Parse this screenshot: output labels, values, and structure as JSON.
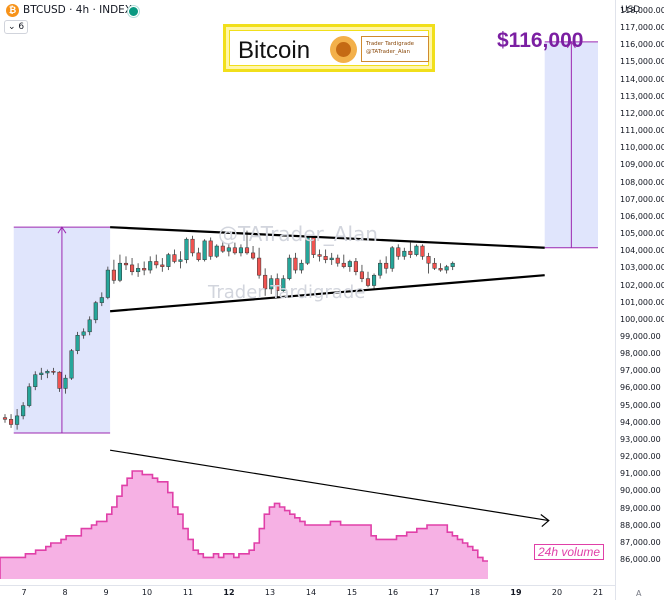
{
  "header": {
    "coin_glyph": "₿",
    "symbol_text": "BTCUSD · 4h · INDEX",
    "indicator_badge": "⌄ 6",
    "currency": "USD"
  },
  "banner": {
    "title": "Bitcoin",
    "card_line1": "Trader Tardigrade",
    "card_line2": "@TATrader_Alan"
  },
  "annotations": {
    "price_target": "$116,000",
    "watermark_handle": "@TATrader_Alan",
    "watermark_name": "Trader Tardigrade",
    "volume_label": "24h volume"
  },
  "colors": {
    "bull": "#26a69a",
    "bear": "#ef5350",
    "shade": "#d6dcfb",
    "shade_edge": "#9c27b0",
    "volume_fill": "#f5a3df",
    "volume_line": "#e040a8",
    "trend_line": "#000000"
  },
  "chart_data": {
    "type": "candlestick",
    "symbol": "BTCUSD",
    "interval": "4h",
    "yaxis": {
      "unit": "USD",
      "min": 86000,
      "max": 118000,
      "step": 1000
    },
    "y_tick_labels": [
      "118,000.00",
      "117,000.00",
      "116,000.00",
      "115,000.00",
      "114,000.00",
      "113,000.00",
      "112,000.00",
      "111,000.00",
      "110,000.00",
      "109,000.00",
      "108,000.00",
      "107,000.00",
      "106,000.00",
      "105,000.00",
      "104,000.00",
      "103,000.00",
      "102,000.00",
      "101,000.00",
      "100,000.00",
      "99,000.00",
      "98,000.00",
      "97,000.00",
      "96,000.00",
      "95,000.00",
      "94,000.00",
      "93,000.00",
      "92,000.00",
      "91,000.00",
      "90,000.00",
      "89,000.00",
      "88,000.00",
      "87,000.00",
      "86,000.00"
    ],
    "x_tick_labels": [
      {
        "label": "7",
        "day": 7,
        "bold": false
      },
      {
        "label": "8",
        "day": 8,
        "bold": false
      },
      {
        "label": "9",
        "day": 9,
        "bold": false
      },
      {
        "label": "10",
        "day": 10,
        "bold": false
      },
      {
        "label": "11",
        "day": 11,
        "bold": false
      },
      {
        "label": "12",
        "day": 12,
        "bold": true
      },
      {
        "label": "13",
        "day": 13,
        "bold": false
      },
      {
        "label": "14",
        "day": 14,
        "bold": false
      },
      {
        "label": "15",
        "day": 15,
        "bold": false
      },
      {
        "label": "16",
        "day": 16,
        "bold": false
      },
      {
        "label": "17",
        "day": 17,
        "bold": false
      },
      {
        "label": "18",
        "day": 18,
        "bold": false
      },
      {
        "label": "19",
        "day": 19,
        "bold": true
      },
      {
        "label": "20",
        "day": 20,
        "bold": false
      },
      {
        "label": "21",
        "day": 21,
        "bold": false
      }
    ],
    "candles": [
      [
        94300,
        94500,
        94000,
        94200
      ],
      [
        94200,
        94500,
        93700,
        93900
      ],
      [
        93900,
        94800,
        93600,
        94400
      ],
      [
        94400,
        95200,
        94200,
        95000
      ],
      [
        95000,
        96300,
        94900,
        96100
      ],
      [
        96100,
        97000,
        95900,
        96800
      ],
      [
        96800,
        97200,
        96500,
        96900
      ],
      [
        96900,
        97100,
        96600,
        97000
      ],
      [
        97000,
        97200,
        96800,
        96950
      ],
      [
        96950,
        97000,
        95800,
        96000
      ],
      [
        96000,
        96800,
        95700,
        96600
      ],
      [
        96600,
        98300,
        96500,
        98200
      ],
      [
        98200,
        99300,
        98000,
        99100
      ],
      [
        99100,
        99500,
        98900,
        99300
      ],
      [
        99300,
        100200,
        99100,
        100000
      ],
      [
        100000,
        101100,
        99800,
        101000
      ],
      [
        101000,
        101600,
        100800,
        101300
      ],
      [
        101300,
        103100,
        101200,
        102900
      ],
      [
        102900,
        103500,
        102100,
        102300
      ],
      [
        102300,
        103800,
        102200,
        103300
      ],
      [
        103300,
        103700,
        102900,
        103200
      ],
      [
        103200,
        103600,
        102600,
        102800
      ],
      [
        102800,
        103300,
        102500,
        103000
      ],
      [
        103000,
        103400,
        102600,
        102900
      ],
      [
        102900,
        103700,
        102700,
        103400
      ],
      [
        103400,
        103800,
        103000,
        103200
      ],
      [
        103200,
        103600,
        102800,
        103100
      ],
      [
        103100,
        103900,
        102900,
        103800
      ],
      [
        103800,
        104100,
        103300,
        103400
      ],
      [
        103400,
        104000,
        103000,
        103500
      ],
      [
        103500,
        104800,
        103300,
        104700
      ],
      [
        104700,
        104900,
        103700,
        103900
      ],
      [
        103900,
        104200,
        103400,
        103500
      ],
      [
        103500,
        104700,
        103400,
        104600
      ],
      [
        104600,
        104800,
        103500,
        103700
      ],
      [
        103700,
        104400,
        103600,
        104300
      ],
      [
        104300,
        104600,
        103900,
        104000
      ],
      [
        104000,
        104400,
        103700,
        104200
      ],
      [
        104200,
        104500,
        103800,
        103900
      ],
      [
        103900,
        104400,
        103700,
        104200
      ],
      [
        104200,
        105200,
        103800,
        103900
      ],
      [
        103900,
        104300,
        103500,
        103600
      ],
      [
        103600,
        104200,
        102400,
        102600
      ],
      [
        102600,
        103000,
        101400,
        101800
      ],
      [
        101800,
        102600,
        101500,
        102400
      ],
      [
        102400,
        102700,
        101300,
        101700
      ],
      [
        101700,
        102600,
        101600,
        102400
      ],
      [
        102400,
        103800,
        102300,
        103600
      ],
      [
        103600,
        103900,
        102700,
        102900
      ],
      [
        102900,
        103500,
        102700,
        103300
      ],
      [
        103300,
        104900,
        103200,
        104800
      ],
      [
        104800,
        105000,
        103600,
        103800
      ],
      [
        103800,
        104100,
        103400,
        103700
      ],
      [
        103700,
        104100,
        103300,
        103500
      ],
      [
        103500,
        103900,
        103200,
        103600
      ],
      [
        103600,
        103800,
        103100,
        103300
      ],
      [
        103300,
        103800,
        103000,
        103100
      ],
      [
        103100,
        103500,
        102800,
        103400
      ],
      [
        103400,
        103600,
        102600,
        102800
      ],
      [
        102800,
        103200,
        102200,
        102400
      ],
      [
        102400,
        102800,
        101900,
        102000
      ],
      [
        102000,
        102700,
        101800,
        102600
      ],
      [
        102600,
        103500,
        102400,
        103300
      ],
      [
        103300,
        103700,
        102700,
        103000
      ],
      [
        103000,
        104300,
        102800,
        104200
      ],
      [
        104200,
        104400,
        103500,
        103700
      ],
      [
        103700,
        104200,
        103500,
        104000
      ],
      [
        104000,
        104500,
        103600,
        103800
      ],
      [
        103800,
        104400,
        103700,
        104300
      ],
      [
        104300,
        104400,
        103500,
        103700
      ],
      [
        103700,
        103900,
        102700,
        103300
      ],
      [
        103300,
        103600,
        102900,
        103000
      ],
      [
        103000,
        103300,
        102800,
        102900
      ],
      [
        102900,
        103200,
        102700,
        103100
      ],
      [
        103100,
        103400,
        102900,
        103300
      ]
    ],
    "triangle": {
      "upper": {
        "from_day": 9.1,
        "from": 105400,
        "to_day": 19.7,
        "to": 104200
      },
      "lower": {
        "from_day": 9.1,
        "from": 100500,
        "to_day": 19.7,
        "to": 102600
      }
    },
    "pole": {
      "from_day": 6.75,
      "to_day": 9.1,
      "low": 93400,
      "high": 105400
    },
    "target_box": {
      "from_day": 19.7,
      "to_day": 21.0,
      "low": 104200,
      "high": 116200
    },
    "volume_trend": {
      "from_day": 9.1,
      "from": 92400,
      "to_day": 19.8,
      "to": 88300
    },
    "volume": [
      3,
      3,
      3,
      3,
      3,
      3.5,
      3.5,
      4,
      4,
      4.5,
      5,
      5,
      5.5,
      6,
      6,
      6,
      7,
      7,
      7.5,
      8,
      8,
      9,
      10,
      11.5,
      13,
      14,
      15,
      15,
      14.5,
      14.5,
      14,
      13.5,
      13.5,
      12,
      10,
      9,
      7,
      5.5,
      4,
      3.5,
      3,
      3,
      3.5,
      3,
      3.5,
      3.5,
      3,
      3.5,
      3.5,
      4,
      5,
      7,
      9,
      10,
      10.5,
      10,
      9.5,
      9,
      8.5,
      8,
      7.5,
      7.5,
      7.5,
      7.5,
      7.5,
      8,
      8,
      7.5,
      7.5,
      7.5,
      7.5,
      7.5,
      7.5,
      6,
      5.5,
      5.5,
      5.5,
      5.5,
      6,
      6,
      6.5,
      6.5,
      7,
      7,
      7.5,
      7.5,
      7.5,
      7.5,
      6.5,
      6,
      5.5,
      5,
      4.5,
      4,
      3,
      2.5
    ]
  }
}
